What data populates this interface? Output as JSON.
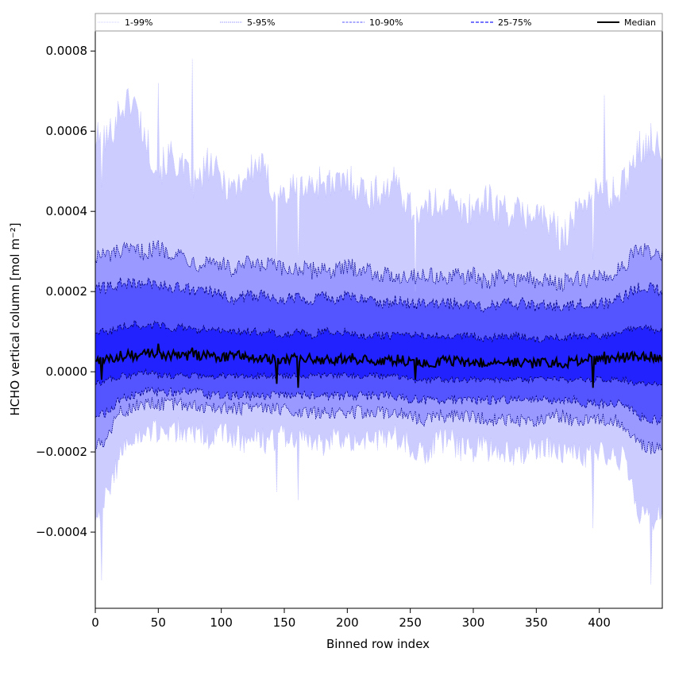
{
  "chart_data": {
    "type": "area",
    "title": "",
    "xlabel": "Binned row index",
    "ylabel": "HCHO vertical column [mol m⁻²]",
    "xlim": [
      0,
      450
    ],
    "ylim": [
      -0.00059,
      0.00085
    ],
    "x_ticks": [
      0,
      50,
      100,
      150,
      200,
      250,
      300,
      350,
      400
    ],
    "x_tick_labels": [
      "0",
      "50",
      "100",
      "150",
      "200",
      "250",
      "300",
      "350",
      "400"
    ],
    "y_ticks": [
      -0.0004,
      -0.0002,
      0.0,
      0.0002,
      0.0004,
      0.0006,
      0.0008
    ],
    "y_tick_labels": [
      "−0.0004",
      "−0.0002",
      "0.0000",
      "0.0002",
      "0.0004",
      "0.0006",
      "0.0008"
    ],
    "grid": false,
    "legend_position": "top",
    "colors": {
      "band_1_99": "#ccccff",
      "band_5_95": "#9999ff",
      "band_10_90": "#5555ff",
      "band_25_75": "#2222ff",
      "p1_99_line": "#b8b8ff",
      "p5_95_line": "#00008b",
      "p10_90_line": "#000080",
      "p25_75_line": "#00005a",
      "median": "#000000"
    },
    "x_step": 10,
    "series": [
      {
        "name": "1-99%",
        "kind": "band",
        "upper": [
          0.00058,
          0.00058,
          0.00066,
          0.00068,
          0.00058,
          0.0005,
          0.00054,
          0.0005,
          0.00046,
          0.00052,
          0.00048,
          0.00046,
          0.00049,
          0.00052,
          0.00046,
          0.00044,
          0.00046,
          0.00046,
          0.00048,
          0.00046,
          0.00048,
          0.00046,
          0.00044,
          0.00046,
          0.00047,
          0.00041,
          0.0004,
          0.00042,
          0.00043,
          0.0004,
          0.00041,
          0.00043,
          0.00041,
          0.0004,
          0.00039,
          0.0004,
          0.00037,
          0.00034,
          0.00038,
          0.00044,
          0.00045,
          0.00044,
          0.00047,
          0.00056,
          0.00057,
          0.00055
        ],
        "lower": [
          -0.00036,
          -0.00031,
          -0.0002,
          -0.00017,
          -0.00016,
          -0.00015,
          -0.00014,
          -0.00015,
          -0.00015,
          -0.00016,
          -0.00016,
          -0.00016,
          -0.00017,
          -0.00017,
          -0.00017,
          -0.00016,
          -0.00017,
          -0.00017,
          -0.00018,
          -0.00017,
          -0.00016,
          -0.00017,
          -0.00017,
          -0.00017,
          -0.00016,
          -0.00018,
          -0.00021,
          -0.00018,
          -0.00017,
          -0.00019,
          -0.00019,
          -0.00019,
          -0.00019,
          -0.0002,
          -0.0002,
          -0.00019,
          -0.00019,
          -0.00019,
          -0.00021,
          -0.00021,
          -0.0002,
          -0.00021,
          -0.00022,
          -0.00034,
          -0.00036,
          -0.00037
        ]
      },
      {
        "name": "5-95%",
        "kind": "band",
        "upper": [
          0.00029,
          0.00029,
          0.0003,
          0.0003,
          0.0003,
          0.00031,
          0.0003,
          0.00029,
          0.00027,
          0.00028,
          0.00027,
          0.00025,
          0.00027,
          0.00026,
          0.00027,
          0.00025,
          0.00026,
          0.00025,
          0.00026,
          0.00025,
          0.00026,
          0.00026,
          0.00025,
          0.00024,
          0.00024,
          0.00024,
          0.00024,
          0.00024,
          0.00023,
          0.00024,
          0.00024,
          0.00022,
          0.00024,
          0.00023,
          0.00024,
          0.00022,
          0.00023,
          0.00022,
          0.00023,
          0.00023,
          0.00024,
          0.00024,
          0.00027,
          0.0003,
          0.0003,
          0.00029
        ],
        "lower": [
          -0.00019,
          -0.00016,
          -0.0001,
          -9e-05,
          -8e-05,
          -8e-05,
          -8e-05,
          -8e-05,
          -8e-05,
          -9e-05,
          -9e-05,
          -9e-05,
          -9e-05,
          -9e-05,
          -9e-05,
          -9e-05,
          -0.0001,
          -0.0001,
          -0.0001,
          -0.0001,
          -0.0001,
          -0.0001,
          -0.0001,
          -0.0001,
          -0.0001,
          -0.00011,
          -0.00012,
          -0.00011,
          -0.00011,
          -0.00011,
          -0.00011,
          -0.00012,
          -0.00012,
          -0.00012,
          -0.00012,
          -0.00012,
          -0.00011,
          -0.00011,
          -0.00012,
          -0.00012,
          -0.00012,
          -0.00012,
          -0.00013,
          -0.00017,
          -0.00019,
          -0.00019
        ]
      },
      {
        "name": "10-90%",
        "kind": "band",
        "upper": [
          0.00021,
          0.00021,
          0.00022,
          0.00022,
          0.00022,
          0.00022,
          0.00021,
          0.00021,
          0.0002,
          0.0002,
          0.00019,
          0.00018,
          0.00019,
          0.00019,
          0.00019,
          0.00018,
          0.00019,
          0.00018,
          0.00019,
          0.00018,
          0.00019,
          0.00018,
          0.00018,
          0.00017,
          0.00018,
          0.00017,
          0.00017,
          0.00017,
          0.00017,
          0.00017,
          0.00017,
          0.00016,
          0.00017,
          0.00017,
          0.00017,
          0.00016,
          0.00017,
          0.00016,
          0.00017,
          0.00017,
          0.00017,
          0.00017,
          0.00019,
          0.00021,
          0.00021,
          0.0002
        ],
        "lower": [
          -0.00011,
          -0.0001,
          -7e-05,
          -6e-05,
          -5e-05,
          -5e-05,
          -5e-05,
          -5e-05,
          -5e-05,
          -6e-05,
          -6e-05,
          -6e-05,
          -6e-05,
          -6e-05,
          -6e-05,
          -6e-05,
          -6e-05,
          -6e-05,
          -6e-05,
          -6e-05,
          -6e-05,
          -6e-05,
          -6e-05,
          -6e-05,
          -6e-05,
          -7e-05,
          -7e-05,
          -7e-05,
          -7e-05,
          -7e-05,
          -7e-05,
          -7e-05,
          -7e-05,
          -7e-05,
          -7e-05,
          -7e-05,
          -7e-05,
          -7e-05,
          -7e-05,
          -8e-05,
          -8e-05,
          -8e-05,
          -8e-05,
          -0.00011,
          -0.00012,
          -0.00012
        ]
      },
      {
        "name": "25-75%",
        "kind": "band",
        "upper": [
          0.0001,
          0.0001,
          0.00011,
          0.00012,
          0.00011,
          0.00012,
          0.00011,
          0.00011,
          0.0001,
          0.00011,
          0.0001,
          0.0001,
          0.0001,
          0.0001,
          0.0001,
          9e-05,
          0.0001,
          9e-05,
          0.0001,
          0.0001,
          0.0001,
          9e-05,
          9e-05,
          9e-05,
          9e-05,
          9e-05,
          9e-05,
          9e-05,
          9e-05,
          9e-05,
          9e-05,
          8e-05,
          9e-05,
          9e-05,
          9e-05,
          8e-05,
          9e-05,
          8e-05,
          9e-05,
          9e-05,
          9e-05,
          9e-05,
          0.0001,
          0.00011,
          0.00011,
          0.0001
        ],
        "lower": [
          -3e-05,
          -2e-05,
          -1e-05,
          -1e-05,
          0.0,
          -1e-05,
          -1e-05,
          -1e-05,
          -1e-05,
          -1e-05,
          -1e-05,
          -1e-05,
          -1e-05,
          -1e-05,
          -1e-05,
          -1e-05,
          -1e-05,
          -1e-05,
          -1e-05,
          -1e-05,
          -1e-05,
          -1e-05,
          -1e-05,
          -1e-05,
          -1e-05,
          -2e-05,
          -2e-05,
          -2e-05,
          -2e-05,
          -2e-05,
          -2e-05,
          -2e-05,
          -2e-05,
          -2e-05,
          -2e-05,
          -2e-05,
          -2e-05,
          -2e-05,
          -2e-05,
          -2e-05,
          -2e-05,
          -2e-05,
          -2e-05,
          -3e-05,
          -3e-05,
          -3e-05
        ]
      },
      {
        "name": "Median",
        "kind": "line",
        "values": [
          2.5e-05,
          3e-05,
          4e-05,
          4e-05,
          4.5e-05,
          4.5e-05,
          4e-05,
          4e-05,
          4e-05,
          4e-05,
          3.5e-05,
          4e-05,
          4e-05,
          3.5e-05,
          3e-05,
          3e-05,
          3.5e-05,
          3.5e-05,
          3e-05,
          3e-05,
          3.5e-05,
          3e-05,
          3e-05,
          2.5e-05,
          3e-05,
          2.5e-05,
          2e-05,
          2.5e-05,
          3e-05,
          2.5e-05,
          2.5e-05,
          2e-05,
          2.5e-05,
          2.5e-05,
          2.5e-05,
          2e-05,
          2.5e-05,
          2e-05,
          2.5e-05,
          3e-05,
          3e-05,
          3e-05,
          3.5e-05,
          4e-05,
          3.5e-05,
          3e-05
        ]
      }
    ],
    "spikes": [
      {
        "x": 5,
        "p99": 0.00046,
        "p1": -0.00052,
        "median": -2e-05
      },
      {
        "x": 50,
        "p99": 0.00072,
        "p1": -0.00017,
        "median": 7e-05
      },
      {
        "x": 77,
        "p99": 0.00078,
        "p1": -0.00013,
        "median": 6e-05
      },
      {
        "x": 144,
        "p99": 0.00025,
        "p1": -0.0003,
        "median": -3e-05
      },
      {
        "x": 161,
        "p99": 0.00026,
        "p1": -0.00032,
        "median": -4e-05
      },
      {
        "x": 254,
        "p99": 0.0002,
        "p1": -0.00022,
        "median": -2e-05
      },
      {
        "x": 395,
        "p99": 0.00028,
        "p1": -0.00039,
        "median": -4e-05
      },
      {
        "x": 404,
        "p99": 0.00069,
        "p1": -0.00021,
        "median": 5e-05
      },
      {
        "x": 441,
        "p99": 0.00062,
        "p1": -0.00053,
        "median": 5e-05
      }
    ]
  }
}
